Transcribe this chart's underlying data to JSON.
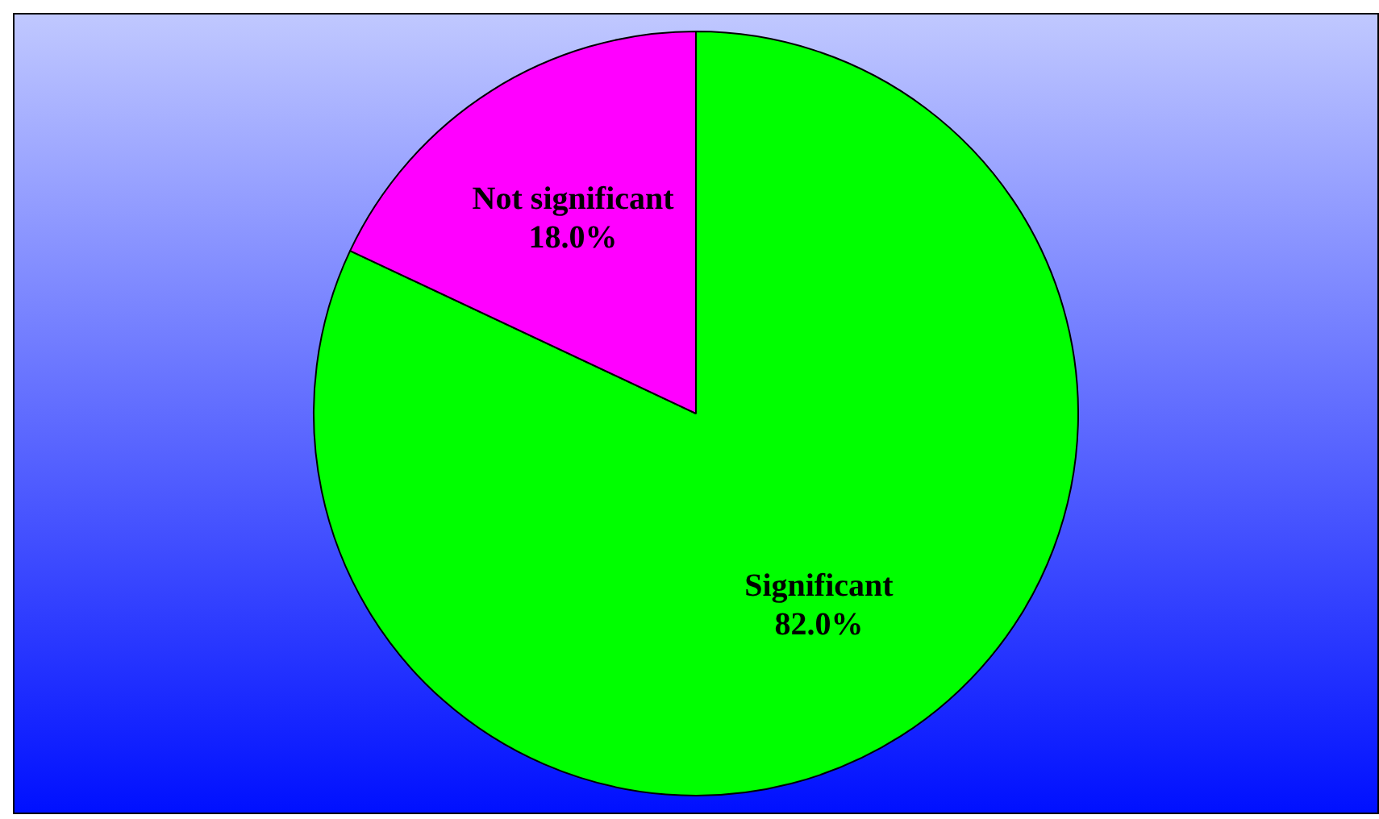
{
  "chart_data": {
    "type": "pie",
    "categories": [
      "Significant",
      "Not significant"
    ],
    "values": [
      82,
      18
    ],
    "colors": [
      "#00ff00",
      "#ff00ff"
    ],
    "value_labels": [
      "82.0%",
      "18.0%"
    ],
    "legend": false
  }
}
